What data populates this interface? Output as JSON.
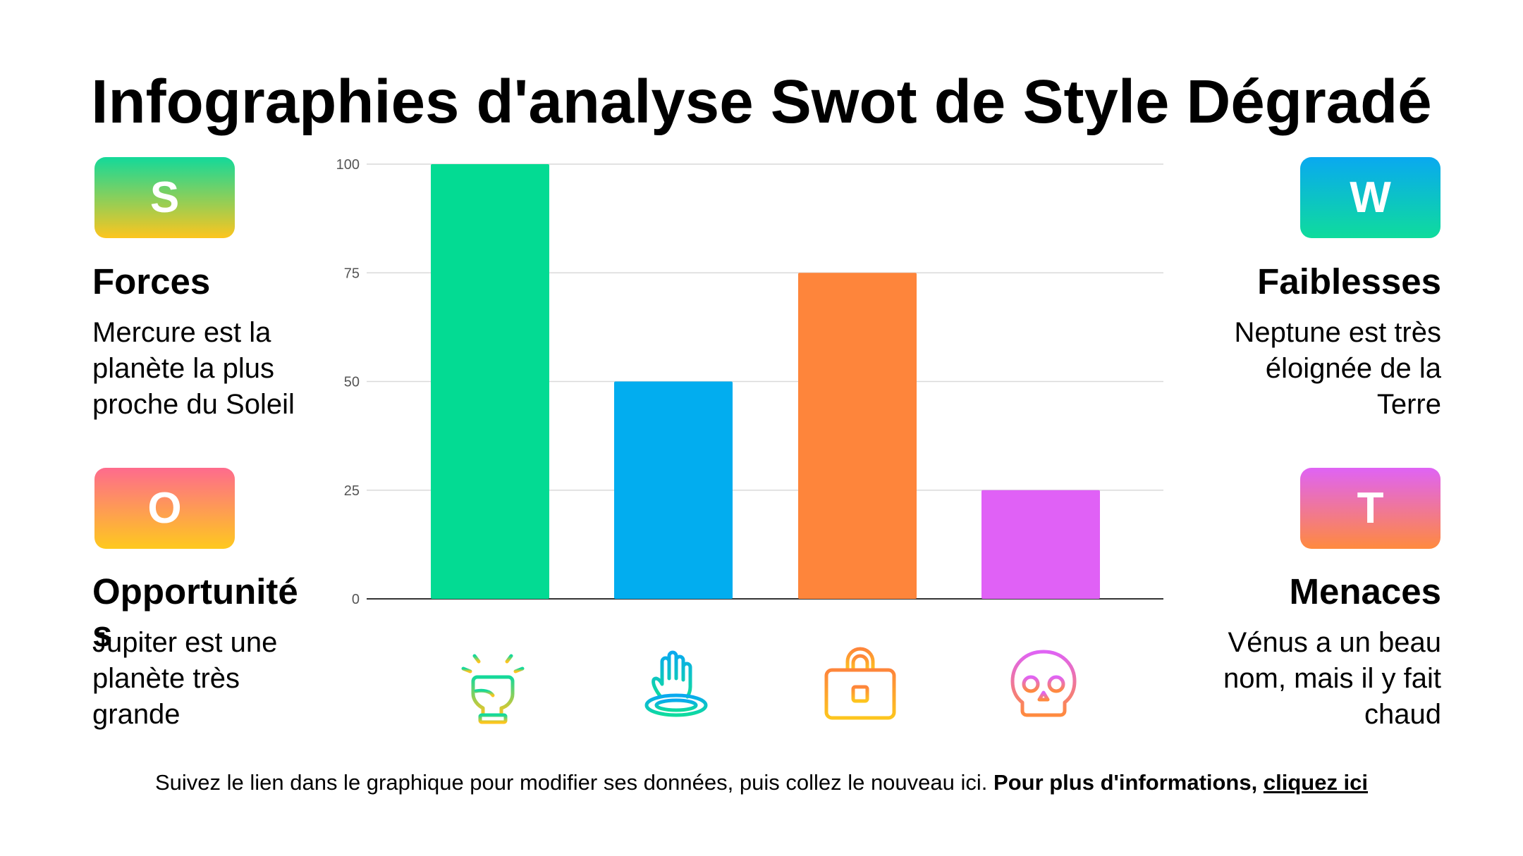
{
  "title": "Infographies d'analyse Swot de Style Dégradé",
  "swot": {
    "s": {
      "letter": "S",
      "heading": "Forces",
      "desc": "Mercure est la planète la plus proche du Soleil",
      "gradient": [
        "#13d99a",
        "#fdc51e"
      ]
    },
    "w": {
      "letter": "W",
      "heading": "Faiblesses",
      "desc": "Neptune est très éloignée de la Terre",
      "gradient": [
        "#09a9f0",
        "#0fdc9c"
      ]
    },
    "o": {
      "letter": "O",
      "heading": "Opportunités",
      "desc": "Jupiter est une planète très grande",
      "gradient": [
        "#fe6b8d",
        "#fec91e"
      ]
    },
    "t": {
      "letter": "T",
      "heading": "Menaces",
      "desc": "Vénus a un beau nom, mais il y fait chaud",
      "gradient": [
        "#df63f5",
        "#ff8a3e"
      ]
    }
  },
  "chart_data": {
    "type": "bar",
    "categories": [
      "Forces",
      "Faiblesses",
      "Opportunités",
      "Menaces"
    ],
    "values": [
      100,
      50,
      75,
      25
    ],
    "colors": [
      "#03db93",
      "#02adef",
      "#fe853b",
      "#e061f6"
    ],
    "ylim": [
      0,
      100
    ],
    "yticks": [
      0,
      25,
      50,
      75,
      100
    ],
    "grid": true,
    "title": "",
    "xlabel": "",
    "ylabel": ""
  },
  "icons": [
    "raised-fist-icon",
    "sinking-hand-icon",
    "briefcase-icon",
    "skull-icon"
  ],
  "footer": {
    "text": "Suivez le lien dans le graphique pour modifier ses données, puis collez le nouveau ici.",
    "bold": "Pour plus d'informations,",
    "link": "cliquez ici"
  }
}
